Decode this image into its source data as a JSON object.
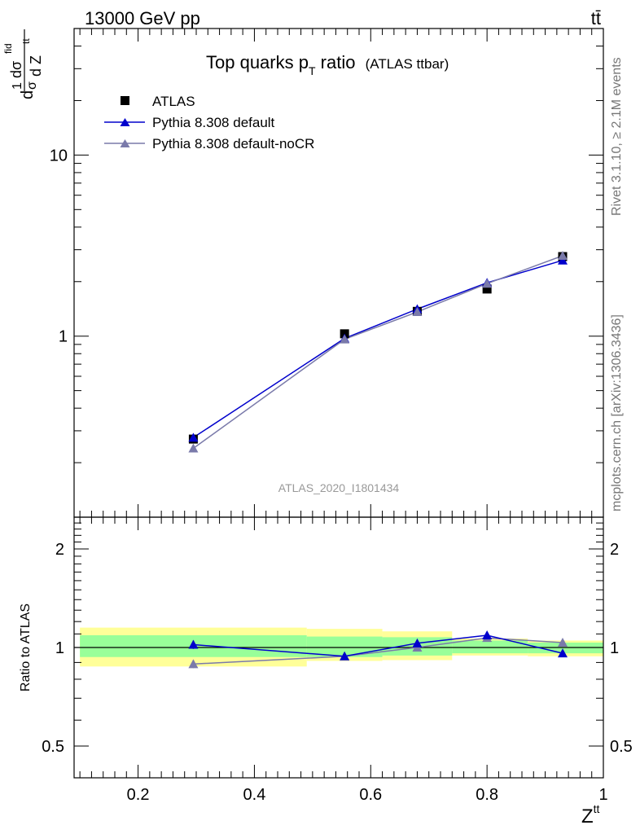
{
  "header": {
    "energy_label": "13000 GeV pp",
    "process_label": "tt̄"
  },
  "side_labels": {
    "rivet": "Rivet 3.1.10, ≥ 2.1M events",
    "mcplots": "mcplots.cern.ch [arXiv:1306.3436]"
  },
  "chart_data": [
    {
      "type": "line",
      "title": "Top quarks p",
      "title_sub": "T",
      "title_suffix": " ratio",
      "title_small": "(ATLAS ttbar)",
      "analysis_label": "ATLAS_2020_I1801434",
      "ylabel_parts": [
        "d",
        "1",
        "σ",
        "dσ",
        "fid",
        "d Z",
        "tt"
      ],
      "xlabel": "Z",
      "xlabel_sup": "tt",
      "yscale": "log",
      "xlim": [
        0.09,
        1.0
      ],
      "ylim": [
        0.1,
        50
      ],
      "y_tick_labels": [
        "1",
        "10"
      ],
      "legend_position": "top-left",
      "series": [
        {
          "name": "ATLAS",
          "marker": "square",
          "color": "#000000",
          "x": [
            0.295,
            0.555,
            0.68,
            0.8,
            0.93
          ],
          "y": [
            0.27,
            1.03,
            1.37,
            1.82,
            2.75
          ]
        },
        {
          "name": "Pythia 8.308 default",
          "marker": "triangle",
          "color": "#0000cc",
          "x": [
            0.295,
            0.555,
            0.68,
            0.8,
            0.93
          ],
          "y": [
            0.275,
            0.97,
            1.41,
            1.97,
            2.62
          ]
        },
        {
          "name": "Pythia 8.308 default-noCR",
          "marker": "triangle",
          "color": "#7a7aaa",
          "x": [
            0.295,
            0.555,
            0.68,
            0.8,
            0.93
          ],
          "y": [
            0.24,
            0.96,
            1.36,
            1.95,
            2.78
          ]
        }
      ]
    },
    {
      "type": "line",
      "ylabel": "Ratio to ATLAS",
      "xlabel": "Z",
      "xlabel_sup": "tt",
      "yscale": "log",
      "xlim": [
        0.09,
        1.0
      ],
      "ylim": [
        0.4,
        2.5
      ],
      "x_ticks": [
        0.2,
        0.4,
        0.6,
        0.8,
        1
      ],
      "x_tick_labels": [
        "0.2",
        "0.4",
        "0.6",
        "0.8",
        "1"
      ],
      "y_ticks": [
        0.5,
        1,
        2
      ],
      "y_tick_labels": [
        "0.5",
        "1",
        "2"
      ],
      "bands": [
        {
          "x0": 0.1,
          "x1": 0.49,
          "yellow": [
            0.875,
            1.15
          ],
          "green": [
            0.935,
            1.09
          ]
        },
        {
          "x0": 0.49,
          "x1": 0.62,
          "yellow": [
            0.91,
            1.14
          ],
          "green": [
            0.935,
            1.08
          ]
        },
        {
          "x0": 0.62,
          "x1": 0.74,
          "yellow": [
            0.915,
            1.12
          ],
          "green": [
            0.945,
            1.075
          ]
        },
        {
          "x0": 0.74,
          "x1": 0.87,
          "yellow": [
            0.945,
            1.065
          ],
          "green": [
            0.96,
            1.05
          ]
        },
        {
          "x0": 0.87,
          "x1": 1.0,
          "yellow": [
            0.94,
            1.05
          ],
          "green": [
            0.96,
            1.035
          ]
        }
      ],
      "series": [
        {
          "name": "Pythia 8.308 default",
          "color": "#0000cc",
          "x": [
            0.295,
            0.555,
            0.68,
            0.8,
            0.93
          ],
          "y": [
            1.02,
            0.94,
            1.03,
            1.09,
            0.96
          ],
          "err": [
            0.03,
            0.02,
            0.025,
            0.025,
            0.01
          ]
        },
        {
          "name": "Pythia 8.308 default-noCR",
          "color": "#7a7aaa",
          "x": [
            0.295,
            0.555,
            0.68,
            0.8,
            0.93
          ],
          "y": [
            0.89,
            0.94,
            1.0,
            1.07,
            1.035
          ],
          "err": [
            0.025,
            0.02,
            0.02,
            0.02,
            0.01
          ]
        }
      ]
    }
  ]
}
